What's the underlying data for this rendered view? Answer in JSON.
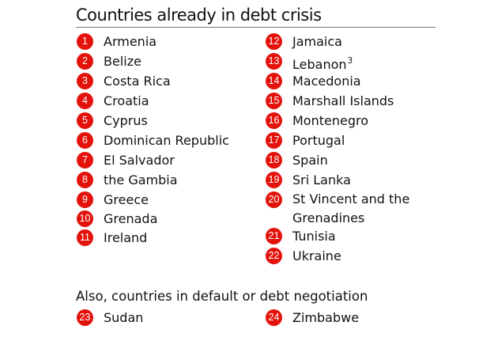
{
  "title": "Countries already in debt crisis",
  "accent_color": "#e3120b",
  "left_column": [
    {
      "number": "1",
      "name": "Armenia"
    },
    {
      "number": "2",
      "name": "Belize"
    },
    {
      "number": "3",
      "name": "Costa Rica"
    },
    {
      "number": "4",
      "name": "Croatia"
    },
    {
      "number": "5",
      "name": "Cyprus"
    },
    {
      "number": "6",
      "name": "Dominican Republic"
    },
    {
      "number": "7",
      "name": "El Salvador"
    },
    {
      "number": "8",
      "name": "the Gambia"
    },
    {
      "number": "9",
      "name": "Greece"
    },
    {
      "number": "10",
      "name": "Grenada"
    },
    {
      "number": "11",
      "name": "Ireland"
    }
  ],
  "right_column": [
    {
      "number": "12",
      "name": "Jamaica"
    },
    {
      "number": "13",
      "name": "Lebanon",
      "footnote": "3"
    },
    {
      "number": "14",
      "name": "Macedonia"
    },
    {
      "number": "15",
      "name": "Marshall Islands"
    },
    {
      "number": "16",
      "name": "Montenegro"
    },
    {
      "number": "17",
      "name": "Portugal"
    },
    {
      "number": "18",
      "name": "Spain"
    },
    {
      "number": "19",
      "name": "Sri Lanka"
    },
    {
      "number": "20",
      "name": "St Vincent and the Grenadines"
    },
    {
      "number": "21",
      "name": "Tunisia"
    },
    {
      "number": "22",
      "name": "Ukraine"
    }
  ],
  "also_heading": "Also, countries in default or debt negotiation",
  "also_left": {
    "number": "23",
    "name": "Sudan"
  },
  "also_right": {
    "number": "24",
    "name": "Zimbabwe"
  }
}
